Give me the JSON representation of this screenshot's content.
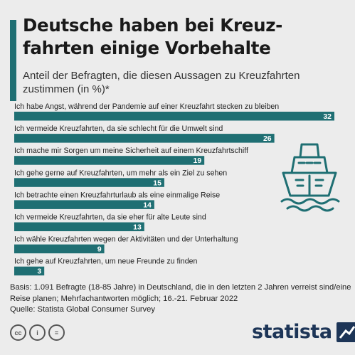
{
  "header": {
    "title": "Deutsche haben bei Kreuz-fahrten einige Vorbehalte",
    "subtitle": "Anteil der Befragten, die diesen Aussagen zu Kreuzfahrten zustimmen (in %)*"
  },
  "chart_data": {
    "type": "bar",
    "orientation": "horizontal",
    "categories": [
      "Ich habe Angst, während der Pandemie auf einer Kreuzfahrt stecken zu bleiben",
      "Ich vermeide Kreuzfahrten, da sie schlecht für die Umwelt sind",
      "Ich mache mir Sorgen um meine Sicherheit auf einem Kreuzfahrtschiff",
      "Ich gehe gerne auf Kreuzfahrten, um mehr als ein Ziel zu sehen",
      "Ich betrachte einen Kreuzfahrturlaub als eine einmalige Reise",
      "Ich vermeide Kreuzfahrten, da sie eher für alte Leute sind",
      "Ich wähle Kreuzfahrten wegen der Aktivitäten und der Unterhaltung",
      "Ich gehe auf Kreuzfahrten, um neue Freunde zu finden"
    ],
    "values": [
      32,
      26,
      19,
      15,
      14,
      13,
      9,
      3
    ],
    "xlim": [
      0,
      32
    ],
    "grid": false,
    "bar_color": "#1f6f73",
    "label_color": "#ffffff"
  },
  "footer": {
    "basis": "Basis: 1.091 Befragte (18-85 Jahre) in Deutschland, die in den letzten 2 Jahren verreist sind/eine Reise planen; Mehrfachantworten möglich; 16.-21. Februar 2022",
    "source": "Quelle: Statista Global Consumer Survey"
  },
  "license": {
    "icons": [
      "cc-icon",
      "attribution-icon",
      "no-derivatives-icon"
    ],
    "cc": "cc",
    "by": "i",
    "nd": "="
  },
  "brand": {
    "name": "statista",
    "color": "#1d3557"
  },
  "decoration": {
    "icon": "cruise-ship-icon",
    "color": "#1f6f73"
  }
}
